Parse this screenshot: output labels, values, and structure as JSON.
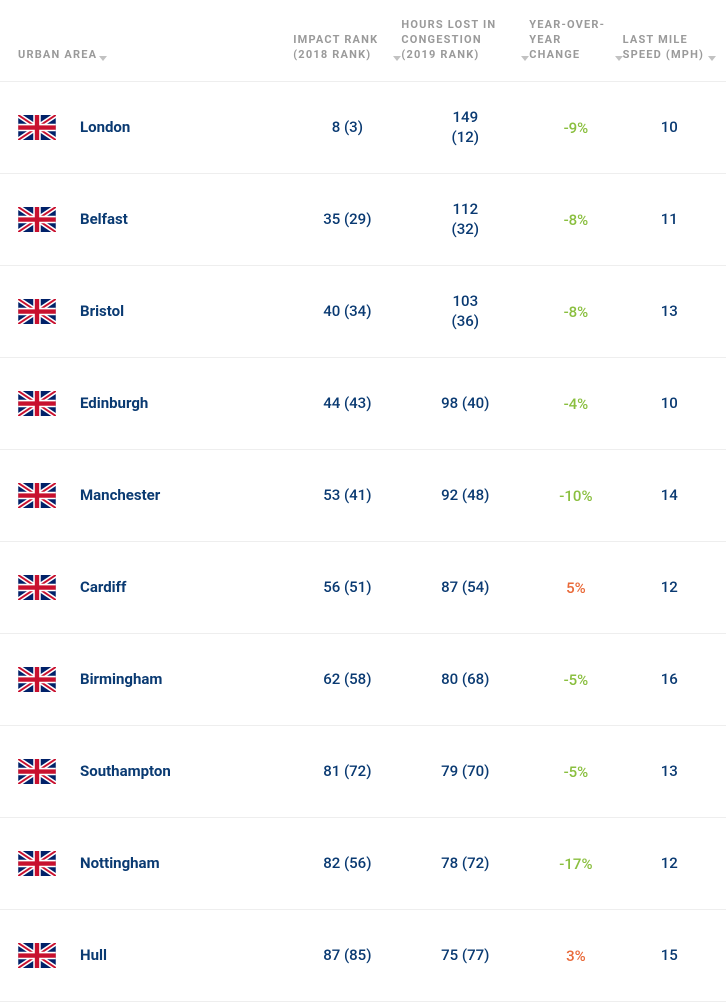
{
  "headers": {
    "urban_area": "URBAN AREA",
    "impact": "IMPACT RANK (2018 RANK)",
    "hours": "HOURS LOST IN CONGESTION (2019 RANK)",
    "yoy": "YEAR-OVER-YEAR CHANGE",
    "speed": "LAST MILE SPEED (MPH)"
  },
  "colors": {
    "header_text": "#9a9a9a",
    "value_text": "#0a3a72",
    "negative": "#8abf3f",
    "positive": "#e96a3a",
    "row_border": "#eeeeee",
    "background": "#ffffff"
  },
  "typography": {
    "header_fontsize": 11,
    "header_letter_spacing": 1.2,
    "city_fontsize": 15,
    "value_fontsize": 15
  },
  "flag": {
    "country": "United Kingdom",
    "bg": "#012169",
    "white": "#ffffff",
    "red": "#c8102e"
  },
  "rows": [
    {
      "city": "London",
      "impact": "8 (3)",
      "hours": "149 (12)",
      "yoy": "-9%",
      "yoy_sign": "neg",
      "speed": "10"
    },
    {
      "city": "Belfast",
      "impact": "35 (29)",
      "hours": "112 (32)",
      "yoy": "-8%",
      "yoy_sign": "neg",
      "speed": "11"
    },
    {
      "city": "Bristol",
      "impact": "40 (34)",
      "hours": "103 (36)",
      "yoy": "-8%",
      "yoy_sign": "neg",
      "speed": "13"
    },
    {
      "city": "Edinburgh",
      "impact": "44 (43)",
      "hours": "98 (40)",
      "yoy": "-4%",
      "yoy_sign": "neg",
      "speed": "10"
    },
    {
      "city": "Manchester",
      "impact": "53 (41)",
      "hours": "92 (48)",
      "yoy": "-10%",
      "yoy_sign": "neg",
      "speed": "14"
    },
    {
      "city": "Cardiff",
      "impact": "56 (51)",
      "hours": "87 (54)",
      "yoy": "5%",
      "yoy_sign": "pos",
      "speed": "12"
    },
    {
      "city": "Birmingham",
      "impact": "62 (58)",
      "hours": "80 (68)",
      "yoy": "-5%",
      "yoy_sign": "neg",
      "speed": "16"
    },
    {
      "city": "Southampton",
      "impact": "81 (72)",
      "hours": "79 (70)",
      "yoy": "-5%",
      "yoy_sign": "neg",
      "speed": "13"
    },
    {
      "city": "Nottingham",
      "impact": "82 (56)",
      "hours": "78 (72)",
      "yoy": "-17%",
      "yoy_sign": "neg",
      "speed": "12"
    },
    {
      "city": "Hull",
      "impact": "87 (85)",
      "hours": "75 (77)",
      "yoy": "3%",
      "yoy_sign": "pos",
      "speed": "15"
    }
  ]
}
